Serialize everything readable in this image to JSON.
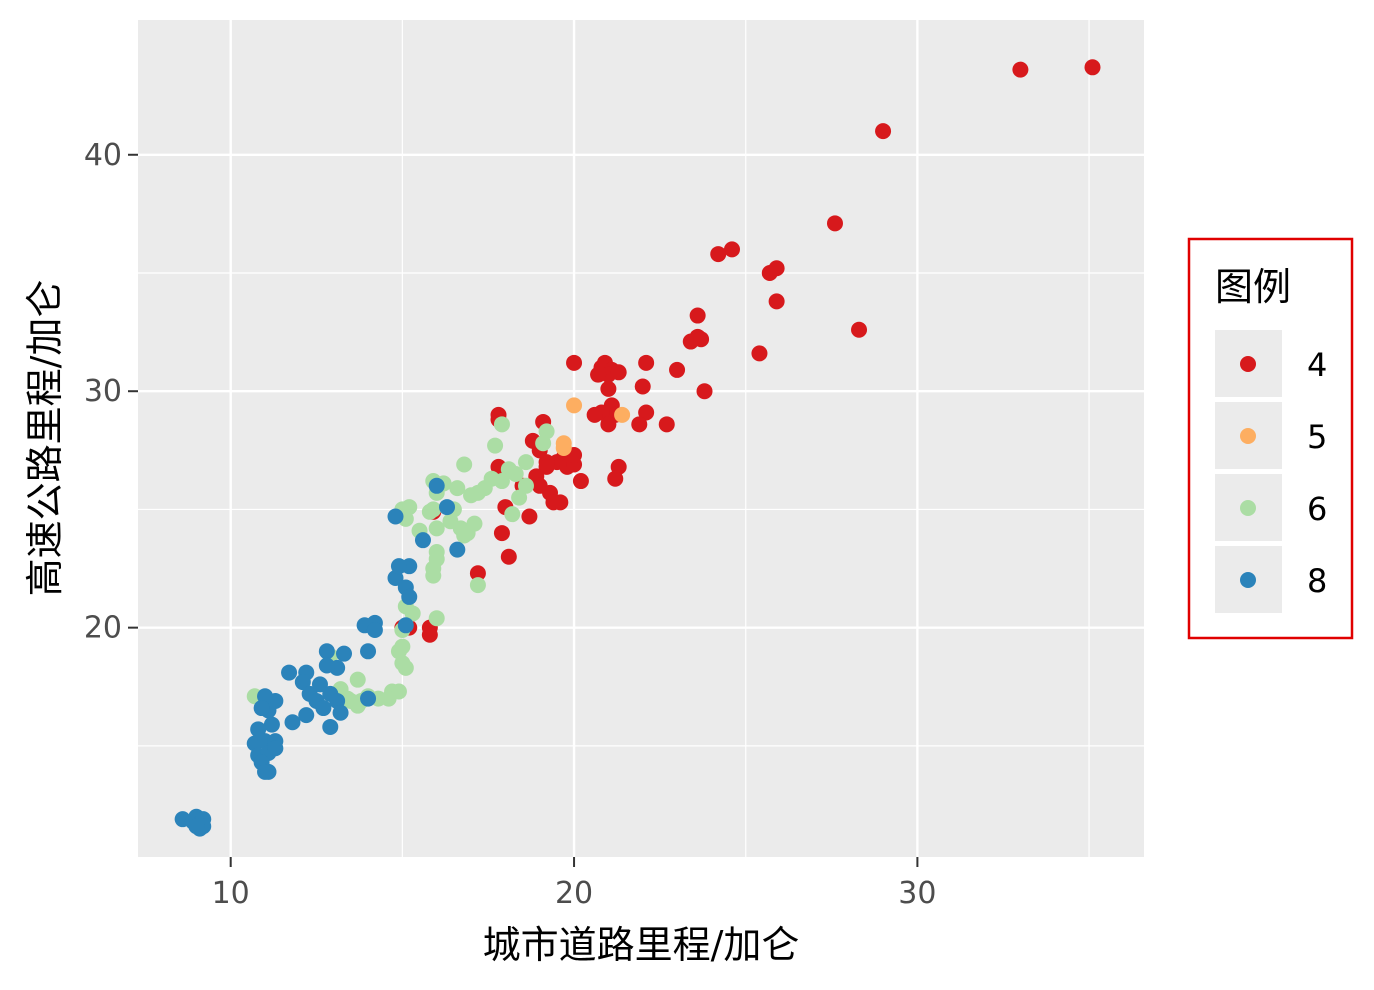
{
  "chart_data": {
    "type": "scatter",
    "xlabel": "城市道路里程/加仑",
    "ylabel": "高速公路里程/加仑",
    "xlim": [
      7.3,
      36.6
    ],
    "ylim": [
      10.3,
      45.7
    ],
    "xticks": [
      10,
      20,
      30
    ],
    "yticks": [
      20,
      30,
      40
    ],
    "x_minor": [
      15,
      25,
      35
    ],
    "y_minor": [
      15,
      25,
      35
    ],
    "grid": true,
    "legend": {
      "title": "图例",
      "placement": "right",
      "entries": [
        {
          "label": "4",
          "color": "#D7191C"
        },
        {
          "label": "5",
          "color": "#FDAE61"
        },
        {
          "label": "6",
          "color": "#ABDDA4"
        },
        {
          "label": "8",
          "color": "#2B83BA"
        }
      ]
    },
    "series": [
      {
        "name": "4",
        "color": "#D7191C",
        "points": [
          [
            35.1,
            43.7
          ],
          [
            33.0,
            43.6
          ],
          [
            29.0,
            41.0
          ],
          [
            27.6,
            37.1
          ],
          [
            28.3,
            32.6
          ],
          [
            24.6,
            36.0
          ],
          [
            24.2,
            35.8
          ],
          [
            25.7,
            35.0
          ],
          [
            25.9,
            35.2
          ],
          [
            25.9,
            33.8
          ],
          [
            25.4,
            31.6
          ],
          [
            23.6,
            33.2
          ],
          [
            23.6,
            32.3
          ],
          [
            23.4,
            32.1
          ],
          [
            23.7,
            32.2
          ],
          [
            23.8,
            30.0
          ],
          [
            23.0,
            30.9
          ],
          [
            22.1,
            31.2
          ],
          [
            22.0,
            30.2
          ],
          [
            22.1,
            29.1
          ],
          [
            21.9,
            28.6
          ],
          [
            22.7,
            28.6
          ],
          [
            20.0,
            31.2
          ],
          [
            20.8,
            31.0
          ],
          [
            20.9,
            31.2
          ],
          [
            21.1,
            30.9
          ],
          [
            21.0,
            30.7
          ],
          [
            20.7,
            30.7
          ],
          [
            21.3,
            30.8
          ],
          [
            21.0,
            30.1
          ],
          [
            21.1,
            29.4
          ],
          [
            21.2,
            29.0
          ],
          [
            20.8,
            29.1
          ],
          [
            21.0,
            28.6
          ],
          [
            20.6,
            29.0
          ],
          [
            21.3,
            26.8
          ],
          [
            21.2,
            26.3
          ],
          [
            20.2,
            26.2
          ],
          [
            19.7,
            27.2
          ],
          [
            19.5,
            27.0
          ],
          [
            19.8,
            26.8
          ],
          [
            20.0,
            26.9
          ],
          [
            20.0,
            27.3
          ],
          [
            19.2,
            27.0
          ],
          [
            18.8,
            27.9
          ],
          [
            17.8,
            28.8
          ],
          [
            17.8,
            29.0
          ],
          [
            19.1,
            28.7
          ],
          [
            19.2,
            26.8
          ],
          [
            18.9,
            26.4
          ],
          [
            19.0,
            26.0
          ],
          [
            18.5,
            26.0
          ],
          [
            19.3,
            25.7
          ],
          [
            19.6,
            25.3
          ],
          [
            19.4,
            25.3
          ],
          [
            18.7,
            24.7
          ],
          [
            18.0,
            25.1
          ],
          [
            17.9,
            24.0
          ],
          [
            18.1,
            23.0
          ],
          [
            17.2,
            22.3
          ],
          [
            17.8,
            26.8
          ],
          [
            15.9,
            24.9
          ],
          [
            15.8,
            19.7
          ],
          [
            15.8,
            20.0
          ],
          [
            15.0,
            20.0
          ],
          [
            15.2,
            20.0
          ],
          [
            19.0,
            27.5
          ]
        ]
      },
      {
        "name": "5",
        "color": "#FDAE61",
        "points": [
          [
            20.0,
            29.4
          ],
          [
            21.4,
            29.0
          ],
          [
            19.7,
            27.6
          ],
          [
            19.7,
            27.8
          ]
        ]
      },
      {
        "name": "6",
        "color": "#ABDDA4",
        "points": [
          [
            19.2,
            28.3
          ],
          [
            19.1,
            27.8
          ],
          [
            17.7,
            27.7
          ],
          [
            17.9,
            28.6
          ],
          [
            18.3,
            26.5
          ],
          [
            18.1,
            26.7
          ],
          [
            18.6,
            27.0
          ],
          [
            17.9,
            26.2
          ],
          [
            17.6,
            26.3
          ],
          [
            17.4,
            25.9
          ],
          [
            17.2,
            25.7
          ],
          [
            17.0,
            25.6
          ],
          [
            16.8,
            26.9
          ],
          [
            16.6,
            25.9
          ],
          [
            16.5,
            25.0
          ],
          [
            16.2,
            26.1
          ],
          [
            15.9,
            26.2
          ],
          [
            16.0,
            25.7
          ],
          [
            15.9,
            25.0
          ],
          [
            15.8,
            24.9
          ],
          [
            15.2,
            25.1
          ],
          [
            15.0,
            25.0
          ],
          [
            15.1,
            24.6
          ],
          [
            15.5,
            24.1
          ],
          [
            16.0,
            24.2
          ],
          [
            16.4,
            24.5
          ],
          [
            16.7,
            24.2
          ],
          [
            16.9,
            24.0
          ],
          [
            17.1,
            24.4
          ],
          [
            16.8,
            23.9
          ],
          [
            16.0,
            23.2
          ],
          [
            16.0,
            22.9
          ],
          [
            15.9,
            22.2
          ],
          [
            15.9,
            22.5
          ],
          [
            17.2,
            21.8
          ],
          [
            15.3,
            20.6
          ],
          [
            15.1,
            20.9
          ],
          [
            15.0,
            19.9
          ],
          [
            15.0,
            19.2
          ],
          [
            14.9,
            19.0
          ],
          [
            15.0,
            18.5
          ],
          [
            15.1,
            18.3
          ],
          [
            14.9,
            17.3
          ],
          [
            14.7,
            17.3
          ],
          [
            14.3,
            17.0
          ],
          [
            14.0,
            17.1
          ],
          [
            13.8,
            16.9
          ],
          [
            13.5,
            16.9
          ],
          [
            13.4,
            17.0
          ],
          [
            13.2,
            17.4
          ],
          [
            13.7,
            16.7
          ],
          [
            14.6,
            17.0
          ],
          [
            13.7,
            17.8
          ],
          [
            12.9,
            18.8
          ],
          [
            14.1,
            20.1
          ],
          [
            10.7,
            17.1
          ],
          [
            16.0,
            20.4
          ],
          [
            18.2,
            24.8
          ],
          [
            18.4,
            25.5
          ],
          [
            18.6,
            26.0
          ]
        ]
      },
      {
        "name": "8",
        "color": "#2B83BA",
        "points": [
          [
            16.6,
            23.3
          ],
          [
            16.3,
            25.1
          ],
          [
            16.0,
            26.0
          ],
          [
            15.6,
            23.7
          ],
          [
            15.2,
            22.6
          ],
          [
            14.8,
            22.1
          ],
          [
            14.9,
            22.6
          ],
          [
            15.1,
            21.7
          ],
          [
            15.2,
            21.3
          ],
          [
            15.1,
            20.1
          ],
          [
            14.8,
            24.7
          ],
          [
            14.2,
            20.2
          ],
          [
            13.9,
            20.1
          ],
          [
            14.2,
            19.9
          ],
          [
            14.0,
            19.0
          ],
          [
            13.3,
            18.9
          ],
          [
            13.1,
            18.3
          ],
          [
            12.8,
            19.0
          ],
          [
            12.8,
            18.4
          ],
          [
            12.2,
            18.1
          ],
          [
            11.7,
            18.1
          ],
          [
            12.1,
            17.7
          ],
          [
            12.3,
            17.2
          ],
          [
            12.6,
            17.6
          ],
          [
            12.9,
            17.2
          ],
          [
            12.5,
            16.9
          ],
          [
            12.2,
            16.3
          ],
          [
            11.8,
            16.0
          ],
          [
            12.7,
            16.6
          ],
          [
            13.1,
            16.9
          ],
          [
            13.2,
            16.4
          ],
          [
            12.9,
            15.8
          ],
          [
            14.0,
            17.0
          ],
          [
            11.3,
            16.9
          ],
          [
            11.1,
            16.5
          ],
          [
            11.0,
            17.1
          ],
          [
            10.9,
            16.6
          ],
          [
            11.2,
            15.9
          ],
          [
            10.8,
            15.7
          ],
          [
            10.7,
            15.1
          ],
          [
            11.0,
            15.2
          ],
          [
            11.3,
            15.2
          ],
          [
            10.8,
            14.6
          ],
          [
            11.1,
            14.7
          ],
          [
            11.3,
            14.9
          ],
          [
            10.9,
            14.3
          ],
          [
            11.0,
            13.9
          ],
          [
            11.1,
            13.9
          ],
          [
            8.6,
            11.9
          ],
          [
            8.9,
            11.8
          ],
          [
            9.0,
            12.0
          ],
          [
            9.1,
            11.7
          ],
          [
            9.2,
            11.9
          ],
          [
            9.1,
            11.5
          ],
          [
            9.2,
            11.6
          ],
          [
            9.0,
            11.6
          ]
        ]
      }
    ]
  }
}
